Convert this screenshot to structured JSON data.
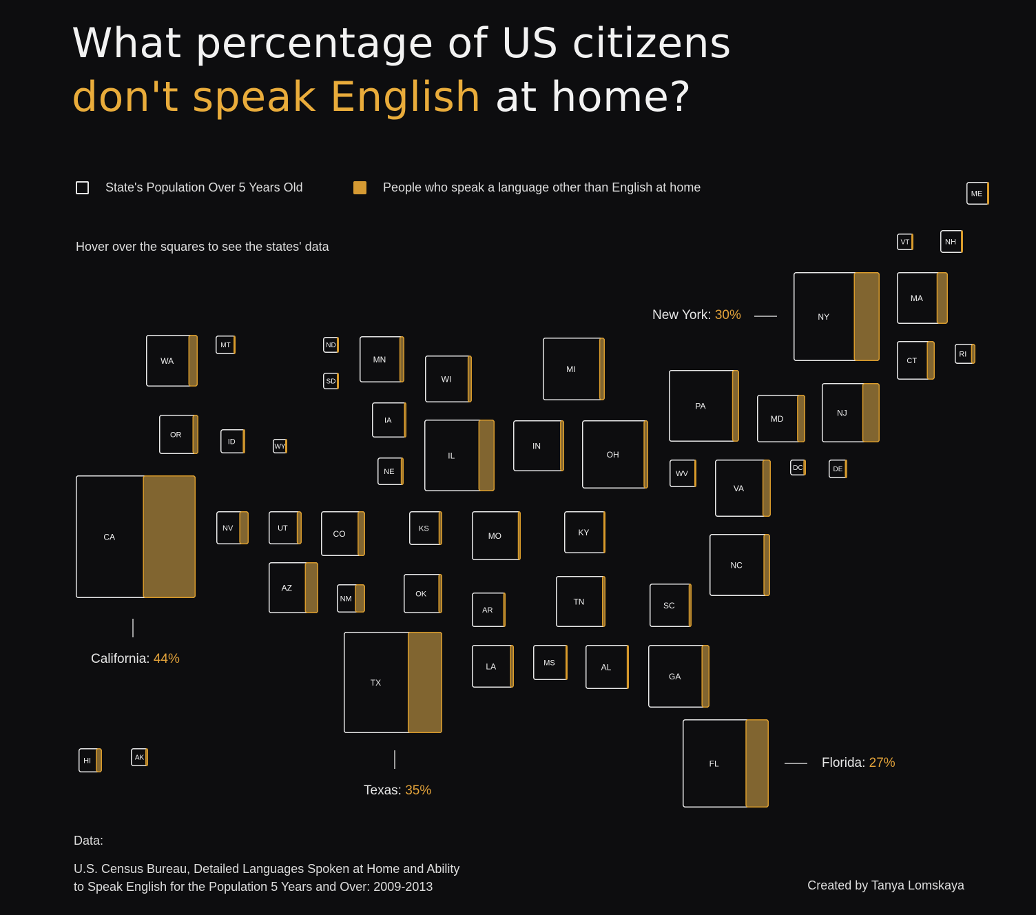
{
  "title": {
    "line1": "What percentage of US citizens",
    "accent": "don't speak English",
    "rest": " at home?"
  },
  "legend": {
    "population_label": "State's Population Over 5 Years Old",
    "other_language_label": "People who speak a language other than English at home"
  },
  "hint": "Hover over the squares to see the states' data",
  "colors": {
    "background": "#0d0d0f",
    "outline": "#e8e8e8",
    "fill": "#816530",
    "fill_edge": "#d99b2b",
    "accent": "#e9ac3b"
  },
  "chart_data": {
    "type": "tile-map",
    "title": "What percentage of US citizens don't speak English at home?",
    "size_encoding": "square area proportional to state population over 5 years old",
    "fill_encoding": "gold share = percent speaking a language other than English at home",
    "states": [
      {
        "code": "ME",
        "pct": 6
      },
      {
        "code": "VT",
        "pct": 5
      },
      {
        "code": "NH",
        "pct": 8
      },
      {
        "code": "MA",
        "pct": 22
      },
      {
        "code": "NY",
        "pct": 30
      },
      {
        "code": "CT",
        "pct": 21
      },
      {
        "code": "RI",
        "pct": 21
      },
      {
        "code": "WA",
        "pct": 18
      },
      {
        "code": "MT",
        "pct": 4
      },
      {
        "code": "ND",
        "pct": 5
      },
      {
        "code": "SD",
        "pct": 7
      },
      {
        "code": "MN",
        "pct": 11
      },
      {
        "code": "WI",
        "pct": 9
      },
      {
        "code": "MI",
        "pct": 9
      },
      {
        "code": "PA",
        "pct": 10
      },
      {
        "code": "MD",
        "pct": 17
      },
      {
        "code": "NJ",
        "pct": 30
      },
      {
        "code": "IA",
        "pct": 7
      },
      {
        "code": "OR",
        "pct": 15
      },
      {
        "code": "ID",
        "pct": 10
      },
      {
        "code": "WY",
        "pct": 7
      },
      {
        "code": "IL",
        "pct": 23
      },
      {
        "code": "IN",
        "pct": 8
      },
      {
        "code": "OH",
        "pct": 7
      },
      {
        "code": "NE",
        "pct": 11
      },
      {
        "code": "WV",
        "pct": 2
      },
      {
        "code": "VA",
        "pct": 15
      },
      {
        "code": "DC",
        "pct": 16
      },
      {
        "code": "DE",
        "pct": 13
      },
      {
        "code": "CA",
        "pct": 44
      },
      {
        "code": "NV",
        "pct": 29
      },
      {
        "code": "UT",
        "pct": 15
      },
      {
        "code": "CO",
        "pct": 17
      },
      {
        "code": "KS",
        "pct": 11
      },
      {
        "code": "MO",
        "pct": 6
      },
      {
        "code": "KY",
        "pct": 5
      },
      {
        "code": "AZ",
        "pct": 27
      },
      {
        "code": "NM",
        "pct": 36
      },
      {
        "code": "OK",
        "pct": 10
      },
      {
        "code": "AR",
        "pct": 7
      },
      {
        "code": "TN",
        "pct": 7
      },
      {
        "code": "SC",
        "pct": 7
      },
      {
        "code": "NC",
        "pct": 11
      },
      {
        "code": "TX",
        "pct": 35
      },
      {
        "code": "LA",
        "pct": 9
      },
      {
        "code": "MS",
        "pct": 4
      },
      {
        "code": "AL",
        "pct": 5
      },
      {
        "code": "GA",
        "pct": 13
      },
      {
        "code": "FL",
        "pct": 27
      },
      {
        "code": "HI",
        "pct": 26
      },
      {
        "code": "AK",
        "pct": 16
      }
    ]
  },
  "callouts": {
    "new_york": {
      "label": "New York: ",
      "value": "30%"
    },
    "california": {
      "label": "California: ",
      "value": "44%"
    },
    "texas": {
      "label": "Texas: ",
      "value": "35%"
    },
    "florida": {
      "label": "Florida: ",
      "value": "27%"
    }
  },
  "footer": {
    "data_label": "Data:",
    "source_line1": "U.S. Census Bureau, Detailed Languages Spoken at Home and Ability",
    "source_line2": "to Speak English for the Population 5 Years and Over: 2009-2013",
    "credit": "Created by Tanya Lomskaya"
  }
}
